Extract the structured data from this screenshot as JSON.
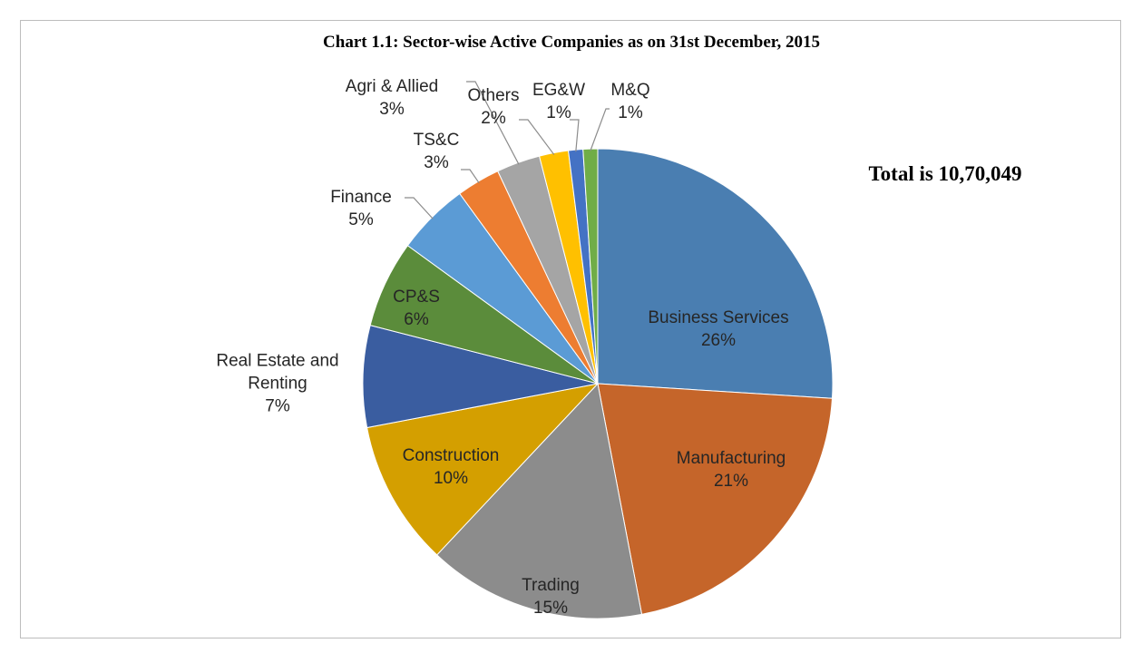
{
  "chart_data": {
    "type": "pie",
    "title": "Chart 1.1: Sector-wise Active Companies as on 31st December, 2015",
    "annotation": "Total is 10,70,049",
    "categories": [
      "Business Services",
      "Manufacturing",
      "Trading",
      "Construction",
      "Real Estate and Renting",
      "CP&S",
      "Finance",
      "TS&C",
      "Agri & Allied",
      "Others",
      "EG&W",
      "M&Q"
    ],
    "values": [
      26,
      21,
      15,
      10,
      7,
      6,
      5,
      3,
      3,
      2,
      1,
      1
    ],
    "value_labels": [
      "26%",
      "21%",
      "15%",
      "10%",
      "7%",
      "6%",
      "5%",
      "3%",
      "3%",
      "2%",
      "1%",
      "1%"
    ],
    "colors": [
      "#4a7eb1",
      "#c5652a",
      "#8c8c8c",
      "#d49f00",
      "#3a5da0",
      "#5b8c3b",
      "#5b9bd5",
      "#ed7d31",
      "#a5a5a5",
      "#ffc000",
      "#4472c4",
      "#70ad47"
    ]
  }
}
